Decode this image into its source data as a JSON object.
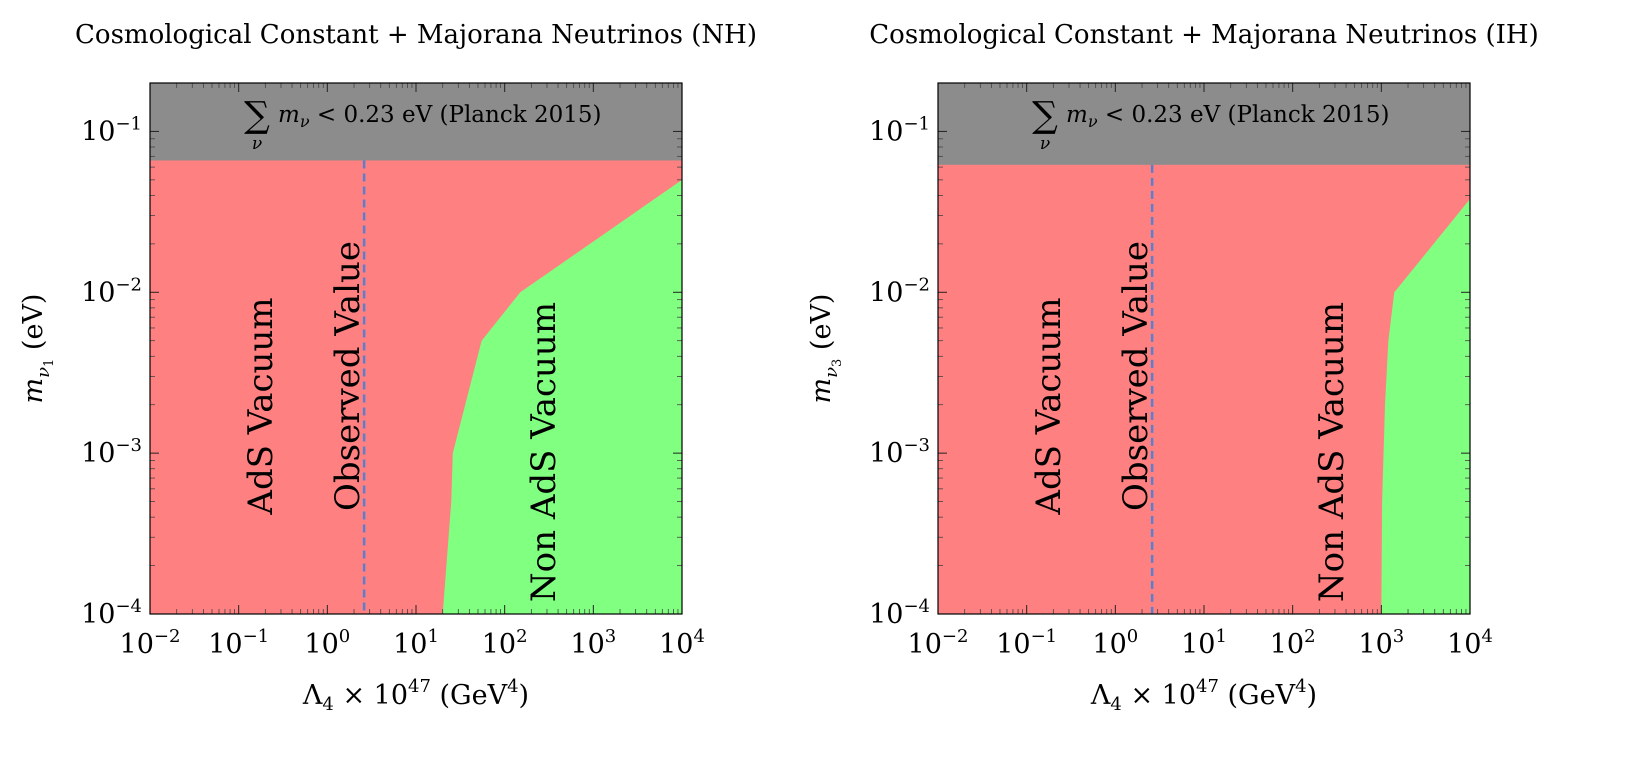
{
  "chart_data": [
    {
      "type": "area",
      "title": "Cosmological Constant + Majorana Neutrinos (NH)",
      "xlabel": {
        "base": "Λ",
        "sub": "4",
        "mid": " × 10",
        "sup": "47",
        "unit_open": " (GeV",
        "unit_sup": "4",
        "unit_close": ")"
      },
      "ylabel": {
        "base": "m",
        "sub1": "ν",
        "sub2": "1",
        "unit": " (eV)"
      },
      "xscale": "log",
      "yscale": "log",
      "xlim": [
        0.01,
        10000
      ],
      "ylim": [
        0.0001,
        0.2
      ],
      "x_ticks": [
        {
          "value": 0.01,
          "base": "10",
          "exp": "−2"
        },
        {
          "value": 0.1,
          "base": "10",
          "exp": "−1"
        },
        {
          "value": 1,
          "base": "10",
          "exp": "0"
        },
        {
          "value": 10,
          "base": "10",
          "exp": "1"
        },
        {
          "value": 100,
          "base": "10",
          "exp": "2"
        },
        {
          "value": 1000,
          "base": "10",
          "exp": "3"
        },
        {
          "value": 10000,
          "base": "10",
          "exp": "4"
        }
      ],
      "y_ticks": [
        {
          "value": 0.0001,
          "base": "10",
          "exp": "−4"
        },
        {
          "value": 0.001,
          "base": "10",
          "exp": "−3"
        },
        {
          "value": 0.01,
          "base": "10",
          "exp": "−2"
        },
        {
          "value": 0.1,
          "base": "10",
          "exp": "−1"
        }
      ],
      "excluded_band": {
        "y_min": 0.066,
        "color": "#8c8c8c",
        "label_sum": "∑",
        "label_sum_sub": "ν",
        "label_m": "m",
        "label_m_sub": "ν",
        "label_rest": " < 0.23 eV (Planck 2015)"
      },
      "ads_region": {
        "label": "AdS Vacuum",
        "color": "#ff8080"
      },
      "non_ads_region": {
        "label": "Non AdS Vacuum",
        "color": "#80ff80",
        "boundary": [
          {
            "x": 20,
            "y": 0.0001
          },
          {
            "x": 25,
            "y": 0.0005
          },
          {
            "x": 26,
            "y": 0.001
          },
          {
            "x": 55,
            "y": 0.005
          },
          {
            "x": 150,
            "y": 0.01
          },
          {
            "x": 10000,
            "y": 0.05
          }
        ]
      },
      "observed_value": {
        "x": 2.6,
        "label": "Observed Value",
        "color": "#5b7fd0"
      }
    },
    {
      "type": "area",
      "title": "Cosmological Constant + Majorana Neutrinos (IH)",
      "xlabel": {
        "base": "Λ",
        "sub": "4",
        "mid": " × 10",
        "sup": "47",
        "unit_open": " (GeV",
        "unit_sup": "4",
        "unit_close": ")"
      },
      "ylabel": {
        "base": "m",
        "sub1": "ν",
        "sub2": "3",
        "unit": " (eV)"
      },
      "xscale": "log",
      "yscale": "log",
      "xlim": [
        0.01,
        10000
      ],
      "ylim": [
        0.0001,
        0.2
      ],
      "x_ticks": [
        {
          "value": 0.01,
          "base": "10",
          "exp": "−2"
        },
        {
          "value": 0.1,
          "base": "10",
          "exp": "−1"
        },
        {
          "value": 1,
          "base": "10",
          "exp": "0"
        },
        {
          "value": 10,
          "base": "10",
          "exp": "1"
        },
        {
          "value": 100,
          "base": "10",
          "exp": "2"
        },
        {
          "value": 1000,
          "base": "10",
          "exp": "3"
        },
        {
          "value": 10000,
          "base": "10",
          "exp": "4"
        }
      ],
      "y_ticks": [
        {
          "value": 0.0001,
          "base": "10",
          "exp": "−4"
        },
        {
          "value": 0.001,
          "base": "10",
          "exp": "−3"
        },
        {
          "value": 0.01,
          "base": "10",
          "exp": "−2"
        },
        {
          "value": 0.1,
          "base": "10",
          "exp": "−1"
        }
      ],
      "excluded_band": {
        "y_min": 0.062,
        "color": "#8c8c8c",
        "label_sum": "∑",
        "label_sum_sub": "ν",
        "label_m": "m",
        "label_m_sub": "ν",
        "label_rest": " < 0.23 eV (Planck 2015)"
      },
      "ads_region": {
        "label": "AdS Vacuum",
        "color": "#ff8080"
      },
      "non_ads_region": {
        "label": "Non AdS Vacuum",
        "color": "#80ff80",
        "boundary": [
          {
            "x": 1000,
            "y": 0.0001
          },
          {
            "x": 1020,
            "y": 0.0005
          },
          {
            "x": 1100,
            "y": 0.002
          },
          {
            "x": 1200,
            "y": 0.005
          },
          {
            "x": 1400,
            "y": 0.01
          },
          {
            "x": 10000,
            "y": 0.038
          }
        ]
      },
      "observed_value": {
        "x": 2.6,
        "label": "Observed Value",
        "color": "#5b7fd0"
      }
    }
  ]
}
